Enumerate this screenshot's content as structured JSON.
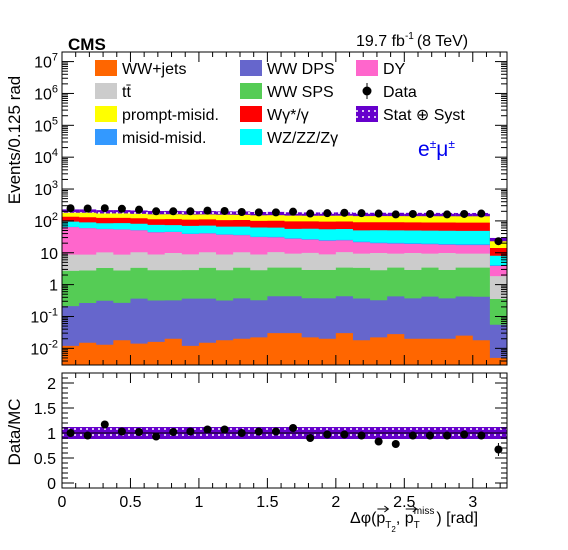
{
  "header": {
    "experiment": "CMS",
    "lumi_value": "19.7 fb",
    "lumi_exp": "-1",
    "energy": "(8 TeV)",
    "channel_label": "e",
    "channel_sup1": "±",
    "channel_mu": "μ",
    "channel_sup2": "±"
  },
  "legend": [
    {
      "label": "WW+jets",
      "color": "#ff6600",
      "kind": "fill"
    },
    {
      "label": "WW DPS",
      "color": "#6666cc",
      "kind": "fill"
    },
    {
      "label": "DY",
      "color": "#ff66cc",
      "kind": "fill"
    },
    {
      "label": "tt̄",
      "color": "#cccccc",
      "kind": "fill"
    },
    {
      "label": "WW SPS",
      "color": "#55cc55",
      "kind": "fill"
    },
    {
      "label": "Data",
      "color": "#000000",
      "kind": "marker"
    },
    {
      "label": "prompt-misid.",
      "color": "#ffff00",
      "kind": "fill"
    },
    {
      "label": "Wγ*/γ",
      "color": "#ff0000",
      "kind": "fill"
    },
    {
      "label": "Stat ⊕ Syst",
      "color": "#6600cc",
      "kind": "hatch"
    },
    {
      "label": "misid-misid.",
      "color": "#3399ff",
      "kind": "fill"
    },
    {
      "label": "WZ/ZZ/Zγ",
      "color": "#00ffff",
      "kind": "fill"
    }
  ],
  "chart_data": [
    {
      "type": "area",
      "stacked": true,
      "log_y": true,
      "ylabel": "Events/0.125 rad",
      "ylim": [
        0.003,
        20000000
      ],
      "xlim": [
        0,
        3.25
      ],
      "y_ticks": [
        {
          "v": 0.01,
          "m": "10",
          "e": "-2"
        },
        {
          "v": 0.1,
          "m": "10",
          "e": "-1"
        },
        {
          "v": 1,
          "m": "1",
          "e": ""
        },
        {
          "v": 10,
          "m": "10",
          "e": ""
        },
        {
          "v": 100,
          "m": "10",
          "e": "2"
        },
        {
          "v": 1000,
          "m": "10",
          "e": "3"
        },
        {
          "v": 10000,
          "m": "10",
          "e": "4"
        },
        {
          "v": 100000,
          "m": "10",
          "e": "5"
        },
        {
          "v": 1000000,
          "m": "10",
          "e": "6"
        },
        {
          "v": 10000000,
          "m": "10",
          "e": "7"
        }
      ],
      "bin_width": 0.125,
      "bin_centers": [
        0.0625,
        0.1875,
        0.3125,
        0.4375,
        0.5625,
        0.6875,
        0.8125,
        0.9375,
        1.0625,
        1.1875,
        1.3125,
        1.4375,
        1.5625,
        1.6875,
        1.8125,
        1.9375,
        2.0625,
        2.1875,
        2.3125,
        2.4375,
        2.5625,
        2.6875,
        2.8125,
        2.9375,
        3.0625,
        3.1875
      ],
      "stack_order_bottom_to_top": [
        "WW+jets",
        "WW DPS",
        "WW SPS",
        "tt̄",
        "DY",
        "misid-misid.",
        "WZ/ZZ/Zγ",
        "Wγ*/γ",
        "prompt-misid."
      ],
      "series": [
        {
          "name": "WW+jets",
          "color": "#ff6600",
          "values": [
            0.012,
            0.015,
            0.013,
            0.018,
            0.014,
            0.016,
            0.02,
            0.012,
            0.015,
            0.018,
            0.02,
            0.022,
            0.03,
            0.03,
            0.022,
            0.02,
            0.03,
            0.018,
            0.022,
            0.028,
            0.02,
            0.02,
            0.02,
            0.025,
            0.018,
            0.005
          ]
        },
        {
          "name": "WW DPS",
          "color": "#6666cc",
          "values": [
            0.2,
            0.25,
            0.3,
            0.25,
            0.35,
            0.3,
            0.3,
            0.35,
            0.35,
            0.3,
            0.35,
            0.3,
            0.4,
            0.4,
            0.35,
            0.35,
            0.4,
            0.35,
            0.3,
            0.4,
            0.35,
            0.4,
            0.35,
            0.4,
            0.4,
            0.05
          ]
        },
        {
          "name": "WW SPS",
          "color": "#55cc55",
          "values": [
            2.5,
            2.5,
            3.0,
            2.5,
            3.0,
            2.5,
            2.5,
            2.5,
            3.0,
            2.5,
            3.0,
            2.5,
            3.0,
            3.0,
            2.5,
            2.5,
            3.0,
            3.0,
            2.5,
            3.0,
            2.5,
            3.0,
            2.5,
            3.0,
            3.0,
            0.3
          ]
        },
        {
          "name": "tt̄",
          "color": "#cccccc",
          "values": [
            6,
            6,
            7,
            6,
            7,
            6,
            7,
            6,
            7,
            6,
            7,
            6,
            7,
            6,
            7,
            6,
            7,
            6,
            7,
            6,
            7,
            6,
            7,
            6,
            6,
            1.5
          ]
        },
        {
          "name": "DY",
          "color": "#ff66cc",
          "values": [
            55,
            50,
            45,
            45,
            40,
            35,
            35,
            30,
            30,
            28,
            25,
            22,
            20,
            18,
            16,
            15,
            14,
            12,
            10,
            10,
            9,
            9,
            8,
            8,
            8,
            2
          ]
        },
        {
          "name": "misid-misid.",
          "color": "#3399ff",
          "values": [
            1,
            1,
            1,
            1,
            1,
            1,
            1,
            1,
            1,
            1,
            1,
            1,
            1,
            1,
            1,
            1,
            1,
            1,
            1,
            1,
            1,
            1,
            1,
            1,
            1,
            0.2
          ]
        },
        {
          "name": "WZ/ZZ/Zγ",
          "color": "#00ffff",
          "values": [
            30,
            30,
            28,
            30,
            30,
            30,
            28,
            30,
            30,
            28,
            30,
            30,
            30,
            28,
            30,
            30,
            30,
            28,
            30,
            30,
            30,
            30,
            30,
            30,
            30,
            4
          ]
        },
        {
          "name": "Wγ*/γ",
          "color": "#ff0000",
          "values": [
            40,
            40,
            40,
            40,
            40,
            38,
            40,
            40,
            40,
            40,
            40,
            38,
            40,
            40,
            40,
            40,
            40,
            40,
            40,
            40,
            40,
            40,
            40,
            40,
            40,
            6
          ]
        },
        {
          "name": "prompt-misid.",
          "color": "#ffff00",
          "values": [
            70,
            75,
            70,
            70,
            68,
            70,
            70,
            70,
            70,
            72,
            70,
            70,
            70,
            70,
            68,
            70,
            70,
            70,
            70,
            70,
            70,
            70,
            70,
            70,
            70,
            12
          ]
        }
      ],
      "data_points": {
        "name": "Data",
        "x": [
          0.0625,
          0.1875,
          0.3125,
          0.4375,
          0.5625,
          0.6875,
          0.8125,
          0.9375,
          1.0625,
          1.1875,
          1.3125,
          1.4375,
          1.5625,
          1.6875,
          1.8125,
          1.9375,
          2.0625,
          2.1875,
          2.3125,
          2.4375,
          2.5625,
          2.6875,
          2.8125,
          2.9375,
          3.0625,
          3.1875
        ],
        "y": [
          250,
          245,
          250,
          240,
          225,
          200,
          200,
          200,
          210,
          205,
          190,
          185,
          185,
          195,
          170,
          175,
          180,
          175,
          170,
          160,
          165,
          165,
          160,
          165,
          170,
          23
        ]
      }
    },
    {
      "type": "scatter",
      "ylabel": "Data/MC",
      "xlabel": "Δφ(p_T_2, p_T^miss) [rad]",
      "ylim": [
        -0.1,
        2.2
      ],
      "xlim": [
        0,
        3.25
      ],
      "y_ticks": [
        0,
        0.5,
        1,
        1.5,
        2
      ],
      "x_ticks": [
        0,
        0.5,
        1,
        1.5,
        2,
        2.5,
        3
      ],
      "band": {
        "name": "Stat ⊕ Syst",
        "low": 0.88,
        "high": 1.12
      },
      "x": [
        0.0625,
        0.1875,
        0.3125,
        0.4375,
        0.5625,
        0.6875,
        0.8125,
        0.9375,
        1.0625,
        1.1875,
        1.3125,
        1.4375,
        1.5625,
        1.6875,
        1.8125,
        1.9375,
        2.0625,
        2.1875,
        2.3125,
        2.4375,
        2.5625,
        2.6875,
        2.8125,
        2.9375,
        3.0625,
        3.1875
      ],
      "y": [
        1.0,
        0.95,
        1.17,
        1.03,
        1.02,
        0.93,
        1.02,
        1.03,
        1.07,
        1.07,
        1.0,
        1.03,
        1.03,
        1.1,
        0.9,
        0.97,
        0.97,
        0.95,
        0.83,
        0.78,
        0.95,
        0.95,
        0.95,
        0.97,
        0.95,
        0.67
      ],
      "yerr": [
        0.07,
        0.07,
        0.07,
        0.07,
        0.07,
        0.07,
        0.07,
        0.07,
        0.07,
        0.07,
        0.07,
        0.07,
        0.07,
        0.07,
        0.07,
        0.07,
        0.07,
        0.07,
        0.07,
        0.07,
        0.07,
        0.07,
        0.07,
        0.07,
        0.07,
        0.13
      ]
    }
  ],
  "x_tick_labels": [
    "0",
    "0.5",
    "1",
    "1.5",
    "2",
    "2.5",
    "3"
  ],
  "ratio_tick_labels": [
    "0",
    "0.5",
    "1",
    "1.5",
    "2"
  ],
  "xlabel_parts": {
    "prefix": "Δφ(",
    "p1": "p",
    "s1": "T",
    "s1b": "2",
    "sep": ", ",
    "p2": "p",
    "s2": "T",
    "s2sup": "miss",
    "suffix": ") [rad]"
  }
}
